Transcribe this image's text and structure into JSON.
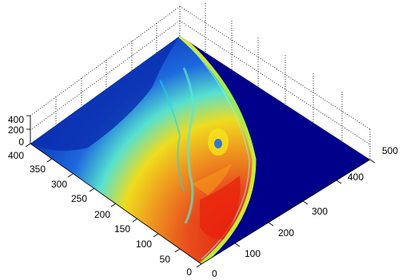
{
  "chart_data": {
    "type": "surface",
    "title": "",
    "view": "3-D surface plot, viewed from above at an oblique angle",
    "colormap": "jet",
    "colors": {
      "background_floor": "#00008b",
      "low": "#0a2fb0",
      "mid_low": "#1e6be0",
      "mid": "#1fd6e8",
      "mid_high": "#f6e31a",
      "high": "#e8220c"
    },
    "grid": true,
    "x_axis": {
      "label": "",
      "range": [
        0,
        500
      ],
      "ticks": [
        "0",
        "100",
        "200",
        "300",
        "400",
        "500"
      ]
    },
    "y_axis": {
      "label": "",
      "range": [
        0,
        400
      ],
      "ticks": [
        "0",
        "50",
        "100",
        "150",
        "200",
        "250",
        "300",
        "350",
        "400"
      ]
    },
    "z_axis": {
      "label": "",
      "range": [
        0,
        400
      ],
      "ticks": [
        "0",
        "200",
        "400"
      ]
    },
    "surface_description": "Quarter-disc shaped bright region in the lower-left of the data domain; intensity increases toward the arc edge, with red/orange highest values near the bottom of the arc and a yellow rim along the curve; the rest of the domain is dark blue."
  }
}
